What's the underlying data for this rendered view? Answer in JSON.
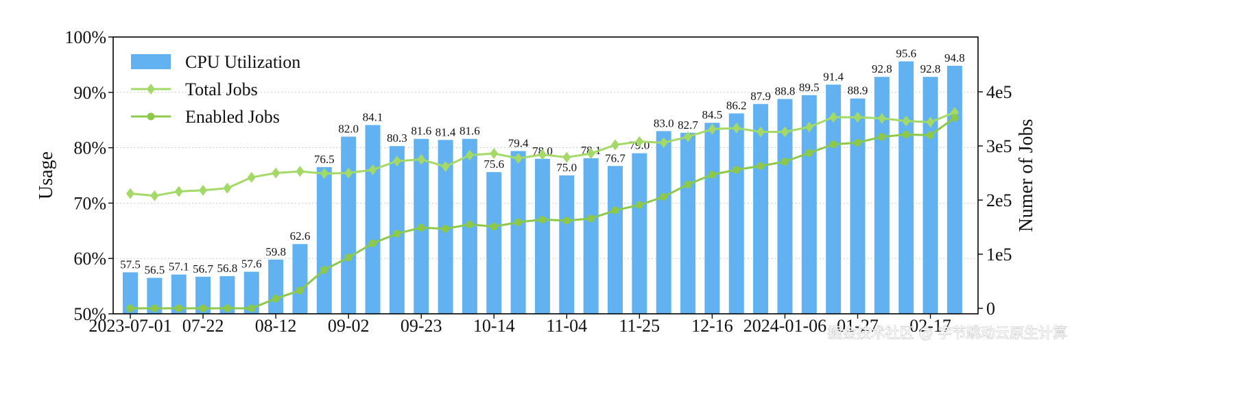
{
  "chart_data": {
    "type": "bar",
    "y_label": "Usage",
    "y2_label": "Numer of Jobs",
    "y_ticks": [
      "50%",
      "60%",
      "70%",
      "80%",
      "90%",
      "100%"
    ],
    "y2_ticks": [
      "0",
      "1e5",
      "2e5",
      "3e5",
      "4e5"
    ],
    "ylim": [
      50,
      100
    ],
    "y2lim": [
      0,
      520000
    ],
    "x_tick_labels": [
      "2023-07-01",
      "07-22",
      "08-12",
      "09-02",
      "09-23",
      "10-14",
      "11-04",
      "11-25",
      "12-16",
      "2024-01-06",
      "01-27",
      "02-17"
    ],
    "grid": "horizontal dotted",
    "legend_position": "top-left",
    "series": [
      {
        "name": "CPU Utilization",
        "kind": "bar",
        "color": "#62b2f1",
        "values": [
          57.5,
          56.5,
          57.1,
          56.7,
          56.8,
          57.6,
          59.8,
          62.6,
          76.5,
          82.0,
          84.1,
          80.3,
          81.6,
          81.4,
          81.6,
          75.6,
          79.4,
          78.0,
          75.0,
          78.1,
          76.7,
          79.0,
          83.0,
          82.7,
          84.5,
          86.2,
          87.9,
          88.8,
          89.5,
          91.4,
          88.9,
          92.8,
          95.6,
          92.8,
          94.8
        ],
        "labels": [
          "57.5",
          "56.5",
          "57.1",
          "56.7",
          "56.8",
          "57.6",
          "59.8",
          "62.6",
          "76.5",
          "82.0",
          "84.1",
          "80.3",
          "81.6",
          "81.4",
          "81.6",
          "75.6",
          "79.4",
          "78.0",
          "75.0",
          "78.1",
          "76.7",
          "79.0",
          "83.0",
          "82.7",
          "84.5",
          "86.2",
          "87.9",
          "88.8",
          "89.5",
          "91.4",
          "88.9",
          "92.8",
          "95.6",
          "92.8",
          "94.8"
        ]
      },
      {
        "name": "Total Jobs",
        "kind": "line",
        "marker": "diamond",
        "color": "#a3d966",
        "values": [
          212000,
          208000,
          216000,
          218000,
          222000,
          242000,
          250000,
          253000,
          249000,
          250000,
          256000,
          272000,
          275000,
          262000,
          283000,
          286000,
          277000,
          284000,
          279000,
          286000,
          302000,
          308000,
          306000,
          317000,
          331000,
          333000,
          326000,
          326000,
          335000,
          353000,
          353000,
          351000,
          346000,
          344000,
          362000
        ]
      },
      {
        "name": "Enabled Jobs",
        "kind": "line",
        "marker": "circle",
        "color": "#8cc84a",
        "values": [
          0,
          0,
          0,
          0,
          0,
          0,
          18000,
          33000,
          71000,
          94000,
          120000,
          138000,
          149000,
          147000,
          155000,
          151000,
          159000,
          164000,
          162000,
          166000,
          181000,
          191000,
          206000,
          229000,
          247000,
          256000,
          263000,
          271000,
          287000,
          303000,
          306000,
          317000,
          321000,
          320000,
          352000
        ]
      }
    ]
  },
  "watermark": "掘金技术社区 @ 字节跳动云原生计算"
}
